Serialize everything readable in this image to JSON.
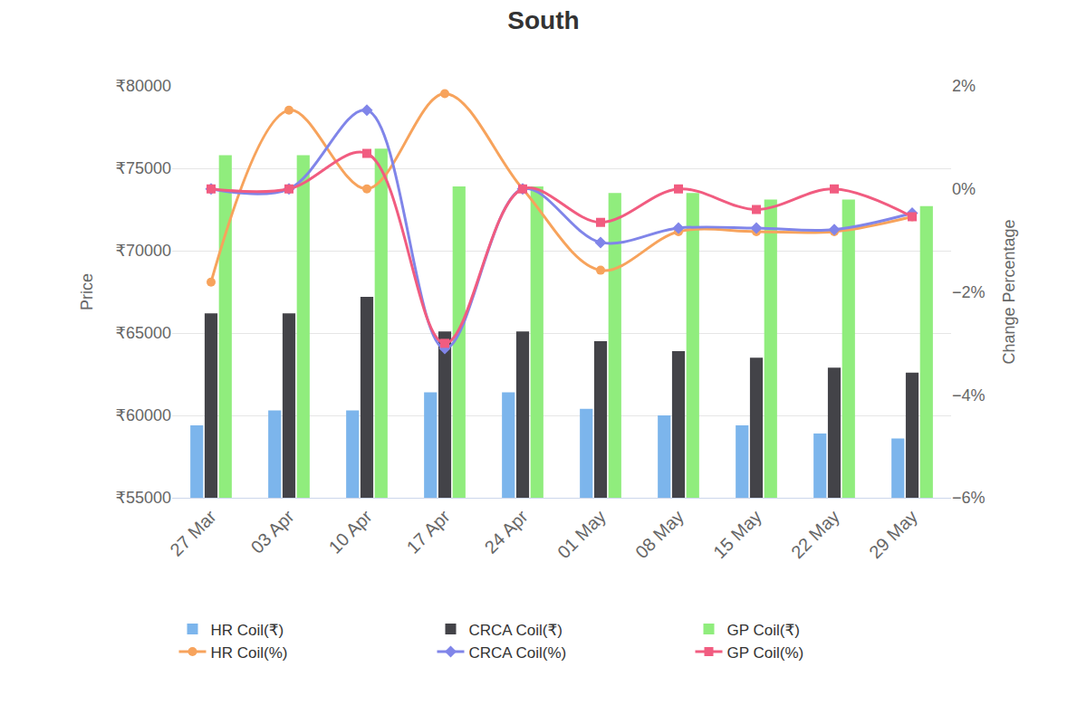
{
  "chart_data": {
    "type": "bar",
    "title": "South",
    "y_label": "Price",
    "y2_label": "Change Percentage",
    "categories": [
      "27 Mar",
      "03 Apr",
      "10 Apr",
      "17 Apr",
      "24 Apr",
      "01 May",
      "08 May",
      "15 May",
      "22 May",
      "29 May"
    ],
    "ylim": [
      55000,
      80000
    ],
    "yticks": [
      {
        "value": 55000,
        "label": "₹55000"
      },
      {
        "value": 60000,
        "label": "₹60000"
      },
      {
        "value": 65000,
        "label": "₹65000"
      },
      {
        "value": 70000,
        "label": "₹70000"
      },
      {
        "value": 75000,
        "label": "₹75000"
      },
      {
        "value": 80000,
        "label": "₹80000"
      }
    ],
    "y2lim": [
      -6,
      2
    ],
    "y2ticks": [
      {
        "value": -6,
        "label": "−6%"
      },
      {
        "value": -4,
        "label": "−4%"
      },
      {
        "value": -2,
        "label": "−2%"
      },
      {
        "value": 0,
        "label": "0%"
      },
      {
        "value": 2,
        "label": "2%"
      }
    ],
    "grid": true,
    "legend": "bottom",
    "series": [
      {
        "name": "HR Coil(₹)",
        "type": "bar",
        "color": "#7cb5ec",
        "values": [
          59400,
          60300,
          60300,
          61400,
          61400,
          60400,
          60000,
          59400,
          58900,
          58600
        ]
      },
      {
        "name": "CRCA Coil(₹)",
        "type": "bar",
        "color": "#434348",
        "values": [
          66200,
          66200,
          67200,
          65100,
          65100,
          64500,
          63900,
          63500,
          62900,
          62600
        ]
      },
      {
        "name": "GP Coil(₹)",
        "type": "bar",
        "color": "#90ed7d",
        "values": [
          75800,
          75800,
          76200,
          73900,
          73900,
          73500,
          73500,
          73100,
          73100,
          72700
        ]
      },
      {
        "name": "HR Coil(%)",
        "type": "line",
        "axis": "y2",
        "color": "#f7a35c",
        "marker": "circle",
        "line_style": "solid",
        "values": [
          -1.81,
          1.53,
          0,
          1.85,
          0,
          -1.58,
          -0.83,
          -0.83,
          -0.83,
          -0.54
        ]
      },
      {
        "name": "CRCA Coil(%)",
        "type": "line",
        "axis": "y2",
        "color": "#8085e9",
        "marker": "diamond",
        "line_style": "solid",
        "values": [
          0,
          0,
          1.53,
          -3.1,
          0,
          -1.04,
          -0.76,
          -0.76,
          -0.79,
          -0.47
        ]
      },
      {
        "name": "GP Coil(%)",
        "type": "line",
        "axis": "y2",
        "color": "#f15c80",
        "marker": "square",
        "line_style": "solid",
        "values": [
          0,
          0,
          0.69,
          -3.0,
          0,
          -0.65,
          0,
          -0.4,
          0,
          -0.54
        ]
      }
    ]
  }
}
